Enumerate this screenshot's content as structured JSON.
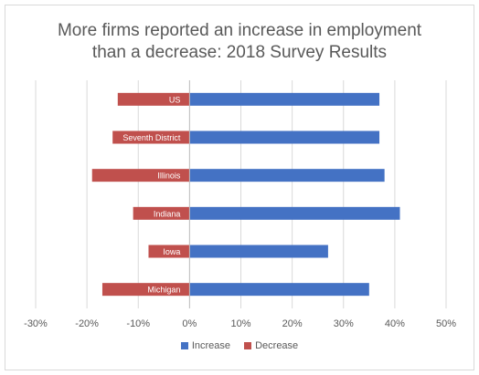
{
  "chart_data": {
    "type": "bar",
    "orientation": "horizontal",
    "title_line1": "More firms reported an increase in employment",
    "title_line2": "than a decrease: 2018 Survey Results",
    "categories": [
      "US",
      "Seventh District",
      "Illinois",
      "Indiana",
      "Iowa",
      "Michigan"
    ],
    "series": [
      {
        "name": "Increase",
        "color": "#4472c4",
        "values": [
          37,
          37,
          38,
          41,
          27,
          35
        ]
      },
      {
        "name": "Decrease",
        "color": "#c0504d",
        "values": [
          -14,
          -15,
          -19,
          -11,
          -8,
          -17
        ]
      }
    ],
    "xlim": [
      -30,
      50
    ],
    "xticks": [
      "-30%",
      "-20%",
      "-10%",
      "0%",
      "10%",
      "20%",
      "30%",
      "40%",
      "50%"
    ],
    "grid": true,
    "legend_position": "bottom"
  }
}
